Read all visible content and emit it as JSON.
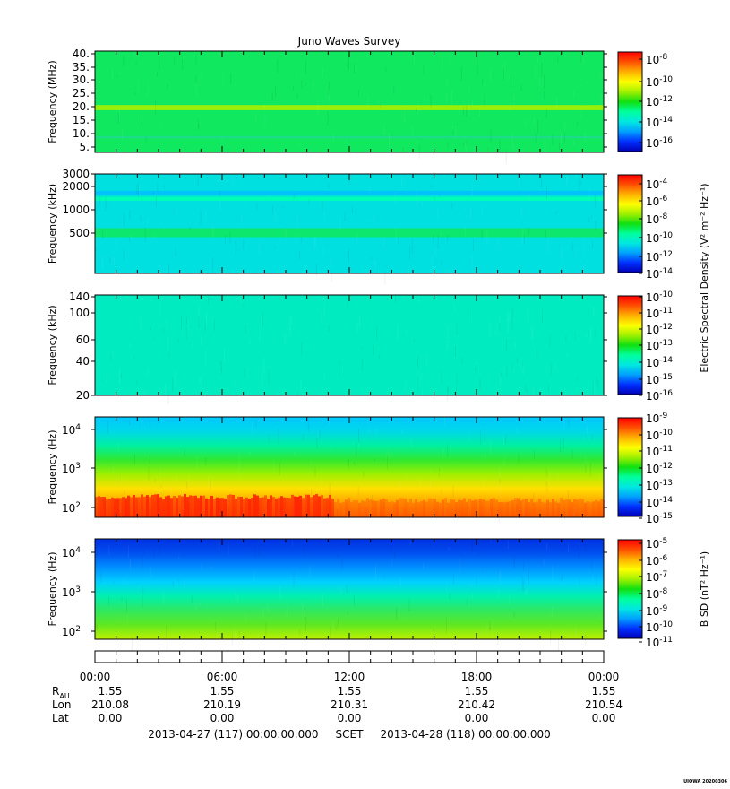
{
  "title": "Juno Waves Survey",
  "colors": {
    "scale": [
      "#0000b4",
      "#0030ff",
      "#00a0ff",
      "#00e8e0",
      "#00ff9c",
      "#10e010",
      "#a0f000",
      "#ffff00",
      "#ffb000",
      "#ff5000",
      "#ff0000"
    ]
  },
  "chart_data": [
    {
      "type": "heatmap",
      "ylabel": "Frequency (MHz)",
      "y_ticks": [
        "40.",
        "35.",
        "30.",
        "25.",
        "20.",
        "15.",
        "10.",
        "5."
      ],
      "colorbar_ticks": [
        {
          "base": "10",
          "exp": "-8"
        },
        {
          "base": "10",
          "exp": "-10"
        },
        {
          "base": "10",
          "exp": "-12"
        },
        {
          "base": "10",
          "exp": "-14"
        },
        {
          "base": "10",
          "exp": "-16"
        }
      ],
      "colorbar_label": "",
      "base_color": "#10e860",
      "bands": [
        {
          "at": 0.558,
          "height": 0.05,
          "color": "#a8f000"
        },
        {
          "at": 0.85,
          "height": 0.02,
          "color": "#20d890"
        }
      ]
    },
    {
      "type": "heatmap",
      "ylabel": "Frequency (kHz)",
      "y_ticks": [
        "3000",
        "2000",
        "1000",
        "500"
      ],
      "colorbar_ticks": [
        {
          "base": "10",
          "exp": "-4"
        },
        {
          "base": "10",
          "exp": "-6"
        },
        {
          "base": "10",
          "exp": "-8"
        },
        {
          "base": "10",
          "exp": "-10"
        },
        {
          "base": "10",
          "exp": "-12"
        },
        {
          "base": "10",
          "exp": "-14"
        }
      ],
      "colorbar_label": "Electric Spectral Density (V² m⁻² Hz⁻¹)",
      "base_color": "#00e0e0",
      "bands": [
        {
          "at": 0.19,
          "height": 0.04,
          "color": "#00c0ff"
        },
        {
          "at": 0.25,
          "height": 0.04,
          "color": "#00ffb0"
        },
        {
          "at": 0.59,
          "height": 0.09,
          "color": "#10e860"
        }
      ]
    },
    {
      "type": "heatmap",
      "ylabel": "Frequency (kHz)",
      "y_ticks": [
        "140",
        "100",
        "60",
        "40",
        "20"
      ],
      "colorbar_ticks": [
        {
          "base": "10",
          "exp": "-10"
        },
        {
          "base": "10",
          "exp": "-11"
        },
        {
          "base": "10",
          "exp": "-12"
        },
        {
          "base": "10",
          "exp": "-13"
        },
        {
          "base": "10",
          "exp": "-14"
        },
        {
          "base": "10",
          "exp": "-15"
        },
        {
          "base": "10",
          "exp": "-16"
        }
      ],
      "colorbar_label": "",
      "base_color": "#00ecc0",
      "bands": []
    },
    {
      "type": "heatmap",
      "ylabel": "Frequency (Hz)",
      "y_ticks": [
        {
          "base": "10",
          "exp": "4"
        },
        {
          "base": "10",
          "exp": "3"
        },
        {
          "base": "10",
          "exp": "2"
        }
      ],
      "colorbar_ticks": [
        {
          "base": "10",
          "exp": "-9"
        },
        {
          "base": "10",
          "exp": "-10"
        },
        {
          "base": "10",
          "exp": "-11"
        },
        {
          "base": "10",
          "exp": "-12"
        },
        {
          "base": "10",
          "exp": "-13"
        },
        {
          "base": "10",
          "exp": "-14"
        },
        {
          "base": "10",
          "exp": "-15"
        }
      ],
      "colorbar_label": "",
      "gradient": [
        "#00c8ff",
        "#00d8e8",
        "#00f0a0",
        "#30e830",
        "#a0f000",
        "#ffe000",
        "#ffa000",
        "#ff7000"
      ],
      "bottom_hot": "#ff1800"
    },
    {
      "type": "heatmap",
      "ylabel": "Frequency (Hz)",
      "y_ticks": [
        {
          "base": "10",
          "exp": "4"
        },
        {
          "base": "10",
          "exp": "3"
        },
        {
          "base": "10",
          "exp": "2"
        }
      ],
      "colorbar_ticks": [
        {
          "base": "10",
          "exp": "-5"
        },
        {
          "base": "10",
          "exp": "-6"
        },
        {
          "base": "10",
          "exp": "-7"
        },
        {
          "base": "10",
          "exp": "-8"
        },
        {
          "base": "10",
          "exp": "-9"
        },
        {
          "base": "10",
          "exp": "-10"
        },
        {
          "base": "10",
          "exp": "-11"
        }
      ],
      "colorbar_label": "B SD (nT² Hz⁻¹)",
      "gradient": [
        "#0030e0",
        "#0050f0",
        "#0090ff",
        "#00d0ff",
        "#00f0b0",
        "#30e860",
        "#60e820",
        "#c0f000"
      ]
    }
  ],
  "time_axis": {
    "ticks": [
      "00:00",
      "06:00",
      "12:00",
      "18:00",
      "00:00"
    ],
    "rows": [
      {
        "label": "R",
        "sub": "AU",
        "values": [
          "1.55",
          "1.55",
          "1.55",
          "1.55",
          "1.55"
        ]
      },
      {
        "label": "Lon",
        "sub": "",
        "values": [
          "210.08",
          "210.19",
          "210.31",
          "210.42",
          "210.54"
        ]
      },
      {
        "label": "Lat",
        "sub": "",
        "values": [
          "0.00",
          "0.00",
          "0.00",
          "0.00",
          "0.00"
        ]
      }
    ],
    "footer": "2013-04-27 (117) 00:00:00.000     SCET     2013-04-28 (118) 00:00:00.000"
  },
  "credit": "UIOWA 20200306"
}
